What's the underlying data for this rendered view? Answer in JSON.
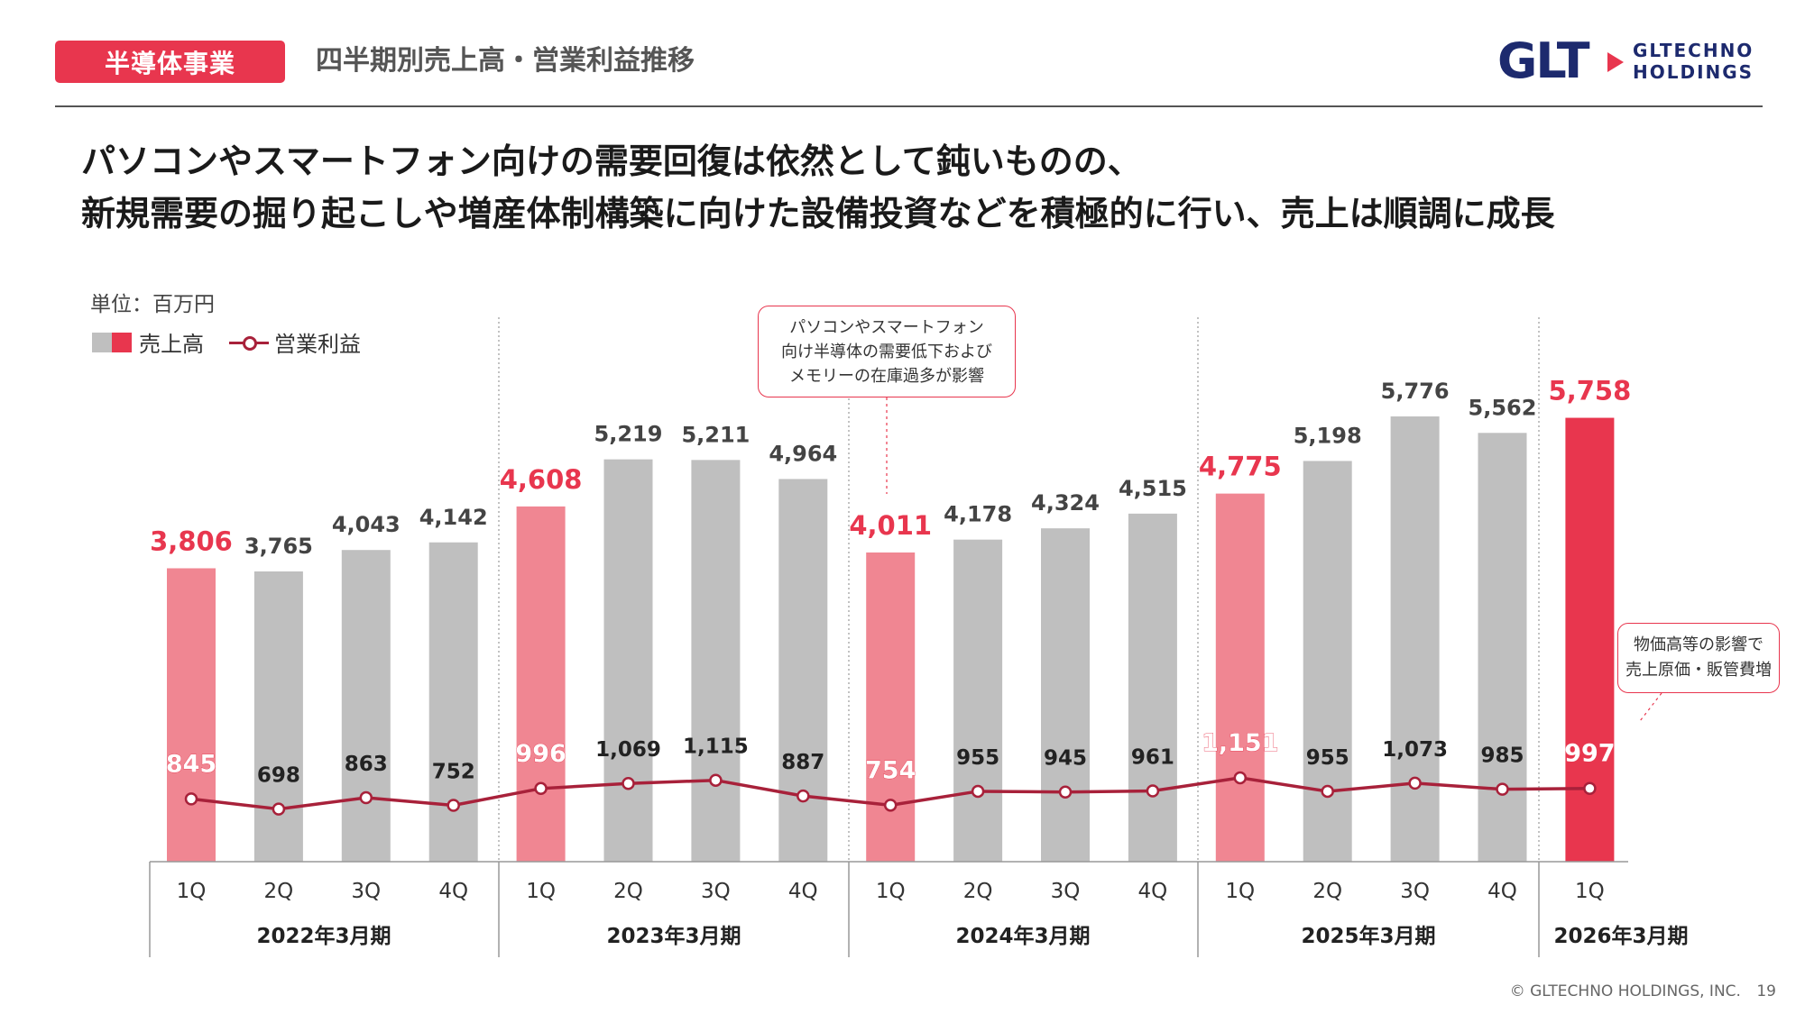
{
  "header": {
    "tag": "半導体事業",
    "title": "四半期別売上高・営業利益推移",
    "logo_mark": "GLT",
    "logo_line1": "GLTECHNO",
    "logo_line2": "HOLDINGS"
  },
  "headline": {
    "line1": "パソコンやスマートフォン向けの需要回復は依然として鈍いものの、",
    "line2": "新規需要の掘り起こしや増産体制構築に向けた設備投資などを積極的に行い、売上は順調に成長"
  },
  "unit_label": "単位：百万円",
  "legend": {
    "sales": "売上高",
    "profit": "営業利益"
  },
  "callouts": {
    "c1": "パソコンやスマートフォン\n向け半導体の需要低下および\nメモリーの在庫過多が影響",
    "c2": "物価高等の影響で\n売上原価・販管費増"
  },
  "footer": {
    "copyright": "© GLTECHNO HOLDINGS, INC.",
    "page": "19"
  },
  "colors": {
    "gray_bar": "#bfbfbf",
    "first_quarter_bar": "#f08692",
    "latest_bar": "#e8364e",
    "profit_line": "#a8213a",
    "highlight_label": "#e8364e"
  },
  "chart_data": {
    "type": "bar",
    "quarters": [
      "1Q",
      "2Q",
      "3Q",
      "4Q",
      "1Q",
      "2Q",
      "3Q",
      "4Q",
      "1Q",
      "2Q",
      "3Q",
      "4Q",
      "1Q",
      "2Q",
      "3Q",
      "4Q",
      "1Q"
    ],
    "fiscal_years": [
      "2022年3月期",
      "2023年3月期",
      "2024年3月期",
      "2025年3月期",
      "2026年3月期"
    ],
    "series": [
      {
        "name": "売上高",
        "type": "bar",
        "values": [
          3806,
          3765,
          4043,
          4142,
          4608,
          5219,
          5211,
          4964,
          4011,
          4178,
          4324,
          4515,
          4775,
          5198,
          5776,
          5562,
          5758
        ]
      },
      {
        "name": "営業利益",
        "type": "line",
        "values": [
          845,
          698,
          863,
          752,
          996,
          1069,
          1115,
          887,
          754,
          955,
          945,
          961,
          1151,
          955,
          1073,
          985,
          997
        ]
      }
    ],
    "ylim": [
      0,
      6000
    ]
  }
}
